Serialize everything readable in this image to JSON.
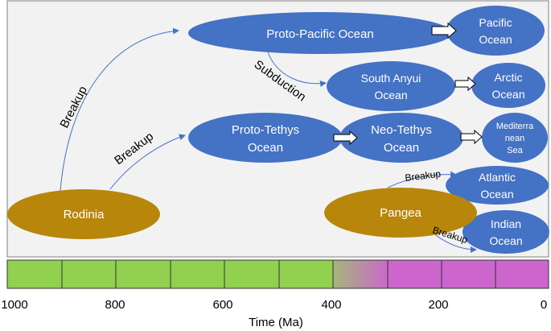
{
  "oceans": {
    "proto_pacific": "Proto-Pacific Ocean",
    "pacific_1": "Pacific",
    "pacific_2": "Ocean",
    "south_anyui_1": "South Anyui",
    "south_anyui_2": "Ocean",
    "arctic_1": "Arctic",
    "arctic_2": "Ocean",
    "proto_tethys_1": "Proto-Tethys",
    "proto_tethys_2": "Ocean",
    "neo_tethys_1": "Neo-Tethys",
    "neo_tethys_2": "Ocean",
    "mediterranean_1": "Mediterra",
    "mediterranean_2": "nean",
    "mediterranean_3": "Sea",
    "atlantic_1": "Atlantic",
    "atlantic_2": "Ocean",
    "indian_1": "Indian",
    "indian_2": "Ocean"
  },
  "continents": {
    "rodinia": "Rodinia",
    "pangea": "Pangea"
  },
  "labels": {
    "breakup": "Breakup",
    "subduction": "Subduction"
  },
  "axis": {
    "title": "Time (Ma)",
    "ticks": [
      "1000",
      "800",
      "600",
      "400",
      "200",
      "0"
    ]
  },
  "colors": {
    "ocean": "#4472C4",
    "continent": "#B8860B",
    "timeline_green": "#92D050",
    "timeline_pink": "#CC66CC",
    "arrow": "#4472C4"
  }
}
